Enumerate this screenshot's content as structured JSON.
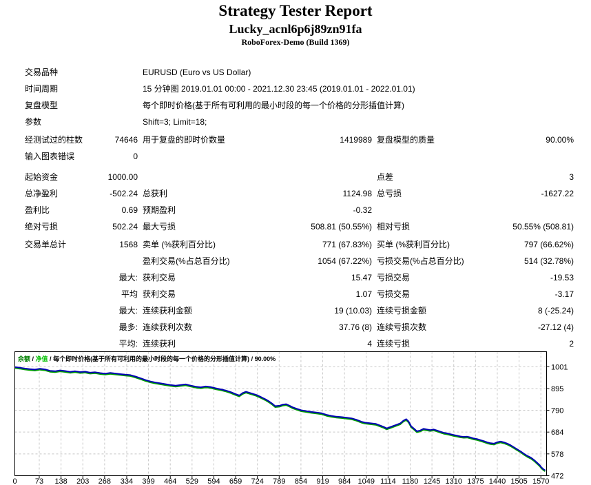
{
  "header": {
    "title": "Strategy Tester Report",
    "ea_name": "Lucky_acnl6p6j89zn91fa",
    "server": "RoboForex-Demo (Build 1369)"
  },
  "report": {
    "sections": [
      {
        "rows": [
          [
            "交易品种",
            "",
            "EURUSD (Euro vs US Dollar)",
            "",
            "",
            ""
          ],
          [
            "时间周期",
            "",
            "15 分钟图 2019.01.01 00:00 - 2021.12.30 23:45 (2019.01.01 - 2022.01.01)",
            "",
            "",
            ""
          ],
          [
            "复盘模型",
            "",
            "每个即时价格(基于所有可利用的最小时段的每一个价格的分形插值计算)",
            "",
            "",
            ""
          ],
          [
            "参数",
            "",
            "Shift=3; Limit=18;",
            "",
            "",
            ""
          ]
        ]
      },
      {
        "rows": [
          [
            "经测试过的柱数",
            "74646",
            "用于复盘的即时价数量",
            "1419989",
            "复盘模型的质量",
            "90.00%"
          ],
          [
            "输入图表错误",
            "0",
            "",
            "",
            "",
            ""
          ]
        ]
      },
      {
        "rows": [
          [
            "起始资金",
            "1000.00",
            "",
            "",
            "点差",
            "3"
          ],
          [
            "总净盈利",
            "-502.24",
            "总获利",
            "1124.98",
            "总亏损",
            "-1627.22"
          ],
          [
            "盈利比",
            "0.69",
            "预期盈利",
            "-0.32",
            "",
            ""
          ],
          [
            "绝对亏损",
            "502.24",
            "最大亏损",
            "508.81 (50.55%)",
            "相对亏损",
            "50.55% (508.81)"
          ]
        ]
      },
      {
        "rows": [
          [
            "交易单总计",
            "1568",
            "卖单 (%获利百分比)",
            "771 (67.83%)",
            "买单 (%获利百分比)",
            "797 (66.62%)"
          ],
          [
            "",
            "",
            "盈利交易(%占总百分比)",
            "1054 (67.22%)",
            "亏损交易(%占总百分比)",
            "514 (32.78%)"
          ],
          [
            "",
            "最大:",
            "获利交易",
            "15.47",
            "亏损交易",
            "-19.53"
          ],
          [
            "",
            "平均",
            "获利交易",
            "1.07",
            "亏损交易",
            "-3.17"
          ],
          [
            "",
            "最大:",
            "连续获利金额",
            "19 (10.03)",
            "连续亏损金额",
            "8 (-25.24)"
          ],
          [
            "",
            "最多:",
            "连续获利次数",
            "37.76 (8)",
            "连续亏损次数",
            "-27.12 (4)"
          ],
          [
            "",
            "平均:",
            "连续获利",
            "4",
            "连续亏损",
            "2"
          ]
        ]
      }
    ]
  },
  "chart_data": {
    "type": "line",
    "legend": {
      "balance": "余额",
      "equity": "净值",
      "sep": " / ",
      "model": "每个即时价格(基于所有可利用的最小时段的每一个价格的分形插值计算)",
      "quality": "90.00%"
    },
    "x_ticks": [
      0,
      73,
      138,
      203,
      268,
      334,
      399,
      464,
      529,
      594,
      659,
      724,
      789,
      854,
      919,
      984,
      1049,
      1114,
      1180,
      1245,
      1310,
      1375,
      1440,
      1505,
      1570
    ],
    "y_ticks": [
      1001,
      895,
      790,
      684,
      578,
      472
    ],
    "xlim": [
      0,
      1587
    ],
    "ylim": [
      472,
      1075
    ],
    "grid": true,
    "colors": {
      "balance": "#0000B4",
      "equity": "#00A000",
      "grid": "#c8c8c8",
      "border": "#000000",
      "legend_balance": "#008000",
      "legend_equity": "#00C000"
    },
    "series": [
      {
        "name": "余额",
        "points": [
          [
            0,
            1000
          ],
          [
            15,
            997
          ],
          [
            30,
            993
          ],
          [
            45,
            990
          ],
          [
            60,
            988
          ],
          [
            75,
            992
          ],
          [
            90,
            989
          ],
          [
            105,
            982
          ],
          [
            120,
            980
          ],
          [
            135,
            984
          ],
          [
            150,
            981
          ],
          [
            165,
            977
          ],
          [
            180,
            980
          ],
          [
            195,
            976
          ],
          [
            210,
            978
          ],
          [
            225,
            973
          ],
          [
            240,
            975
          ],
          [
            255,
            971
          ],
          [
            270,
            968
          ],
          [
            285,
            972
          ],
          [
            300,
            969
          ],
          [
            315,
            966
          ],
          [
            330,
            963
          ],
          [
            345,
            961
          ],
          [
            360,
            954
          ],
          [
            375,
            946
          ],
          [
            390,
            937
          ],
          [
            405,
            930
          ],
          [
            420,
            925
          ],
          [
            435,
            921
          ],
          [
            450,
            917
          ],
          [
            465,
            913
          ],
          [
            480,
            910
          ],
          [
            495,
            913
          ],
          [
            510,
            916
          ],
          [
            525,
            910
          ],
          [
            540,
            905
          ],
          [
            555,
            902
          ],
          [
            570,
            906
          ],
          [
            585,
            903
          ],
          [
            600,
            897
          ],
          [
            615,
            892
          ],
          [
            630,
            886
          ],
          [
            645,
            878
          ],
          [
            660,
            868
          ],
          [
            670,
            862
          ],
          [
            680,
            874
          ],
          [
            690,
            880
          ],
          [
            700,
            875
          ],
          [
            710,
            870
          ],
          [
            720,
            865
          ],
          [
            730,
            858
          ],
          [
            740,
            850
          ],
          [
            750,
            842
          ],
          [
            760,
            832
          ],
          [
            770,
            820
          ],
          [
            777,
            810
          ],
          [
            790,
            812
          ],
          [
            800,
            818
          ],
          [
            810,
            820
          ],
          [
            820,
            812
          ],
          [
            830,
            804
          ],
          [
            840,
            798
          ],
          [
            855,
            790
          ],
          [
            870,
            786
          ],
          [
            885,
            782
          ],
          [
            900,
            779
          ],
          [
            915,
            776
          ],
          [
            930,
            768
          ],
          [
            945,
            763
          ],
          [
            960,
            759
          ],
          [
            975,
            757
          ],
          [
            990,
            754
          ],
          [
            1005,
            751
          ],
          [
            1020,
            744
          ],
          [
            1035,
            734
          ],
          [
            1045,
            730
          ],
          [
            1060,
            727
          ],
          [
            1077,
            724
          ],
          [
            1090,
            716
          ],
          [
            1100,
            710
          ],
          [
            1110,
            702
          ],
          [
            1120,
            708
          ],
          [
            1135,
            717
          ],
          [
            1150,
            726
          ],
          [
            1160,
            740
          ],
          [
            1168,
            747
          ],
          [
            1175,
            736
          ],
          [
            1183,
            712
          ],
          [
            1192,
            700
          ],
          [
            1200,
            688
          ],
          [
            1210,
            692
          ],
          [
            1220,
            700
          ],
          [
            1230,
            697
          ],
          [
            1240,
            694
          ],
          [
            1250,
            697
          ],
          [
            1260,
            692
          ],
          [
            1270,
            686
          ],
          [
            1280,
            681
          ],
          [
            1290,
            678
          ],
          [
            1300,
            674
          ],
          [
            1310,
            670
          ],
          [
            1320,
            667
          ],
          [
            1330,
            663
          ],
          [
            1340,
            661
          ],
          [
            1350,
            662
          ],
          [
            1360,
            658
          ],
          [
            1370,
            653
          ],
          [
            1380,
            650
          ],
          [
            1390,
            645
          ],
          [
            1400,
            640
          ],
          [
            1410,
            634
          ],
          [
            1420,
            630
          ],
          [
            1430,
            628
          ],
          [
            1440,
            635
          ],
          [
            1450,
            638
          ],
          [
            1460,
            634
          ],
          [
            1470,
            628
          ],
          [
            1480,
            620
          ],
          [
            1490,
            610
          ],
          [
            1500,
            600
          ],
          [
            1510,
            590
          ],
          [
            1520,
            578
          ],
          [
            1530,
            568
          ],
          [
            1540,
            560
          ],
          [
            1550,
            548
          ],
          [
            1558,
            536
          ],
          [
            1566,
            524
          ],
          [
            1572,
            512
          ],
          [
            1578,
            503
          ],
          [
            1583,
            498
          ]
        ]
      },
      {
        "name": "净值",
        "derived_offset": -5
      }
    ]
  }
}
